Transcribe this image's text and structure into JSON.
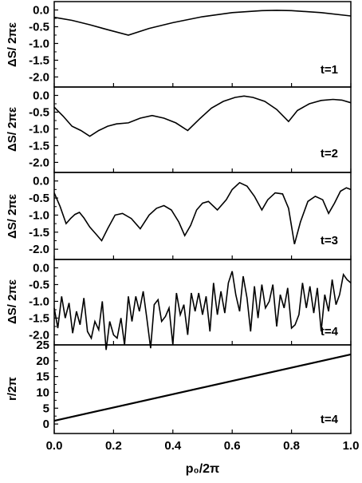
{
  "figure": {
    "xlabel": "p₀/2π",
    "x_ticks": [
      "0.0",
      "0.2",
      "0.4",
      "0.6",
      "0.8",
      "1.0"
    ]
  },
  "chart_data": [
    {
      "type": "line",
      "panel_label": "t=1",
      "ylabel": "ΔS/ 2πε",
      "xlim": [
        0,
        1
      ],
      "ylim": [
        -2.3,
        0.25
      ],
      "y_ticks": [
        "0.0",
        "-0.5",
        "-1.0",
        "-1.5",
        "-2.0"
      ],
      "x": [
        0,
        0.06,
        0.12,
        0.18,
        0.25,
        0.32,
        0.4,
        0.5,
        0.6,
        0.7,
        0.75,
        0.8,
        0.9,
        1.0
      ],
      "y": [
        -0.22,
        -0.31,
        -0.44,
        -0.59,
        -0.75,
        -0.55,
        -0.38,
        -0.2,
        -0.08,
        -0.02,
        -0.01,
        -0.02,
        -0.08,
        -0.18
      ]
    },
    {
      "type": "line",
      "panel_label": "t=2",
      "ylabel": "ΔS/ 2πε",
      "xlim": [
        0,
        1
      ],
      "ylim": [
        -2.3,
        0.25
      ],
      "y_ticks": [
        "0.0",
        "-0.5",
        "-1.0",
        "-1.5",
        "-2.0"
      ],
      "x": [
        0,
        0.03,
        0.06,
        0.09,
        0.12,
        0.15,
        0.18,
        0.21,
        0.25,
        0.29,
        0.33,
        0.37,
        0.41,
        0.45,
        0.49,
        0.53,
        0.57,
        0.61,
        0.64,
        0.67,
        0.71,
        0.75,
        0.79,
        0.82,
        0.86,
        0.9,
        0.94,
        0.97,
        1.0
      ],
      "y": [
        -0.35,
        -0.62,
        -0.92,
        -1.05,
        -1.22,
        -1.05,
        -0.92,
        -0.85,
        -0.82,
        -0.68,
        -0.6,
        -0.68,
        -0.82,
        -1.05,
        -0.7,
        -0.38,
        -0.18,
        -0.06,
        -0.02,
        -0.06,
        -0.18,
        -0.42,
        -0.78,
        -0.45,
        -0.25,
        -0.15,
        -0.12,
        -0.14,
        -0.22
      ]
    },
    {
      "type": "line",
      "panel_label": "t=3",
      "ylabel": "ΔS/ 2πε",
      "xlim": [
        0,
        1
      ],
      "ylim": [
        -2.3,
        0.25
      ],
      "y_ticks": [
        "0.0",
        "-0.5",
        "-1.0",
        "-1.5",
        "-2.0"
      ],
      "x": [
        0,
        0.02,
        0.04,
        0.055,
        0.07,
        0.085,
        0.1,
        0.12,
        0.14,
        0.16,
        0.18,
        0.205,
        0.23,
        0.26,
        0.29,
        0.32,
        0.345,
        0.37,
        0.395,
        0.42,
        0.44,
        0.46,
        0.48,
        0.5,
        0.52,
        0.55,
        0.58,
        0.6,
        0.625,
        0.65,
        0.675,
        0.7,
        0.72,
        0.745,
        0.77,
        0.79,
        0.81,
        0.83,
        0.855,
        0.88,
        0.905,
        0.925,
        0.945,
        0.965,
        0.985,
        1.0
      ],
      "y": [
        -0.35,
        -0.75,
        -1.25,
        -1.1,
        -0.98,
        -0.92,
        -1.08,
        -1.35,
        -1.55,
        -1.75,
        -1.4,
        -1.0,
        -0.95,
        -1.1,
        -1.4,
        -1.0,
        -0.8,
        -0.72,
        -0.85,
        -1.2,
        -1.6,
        -1.3,
        -0.85,
        -0.65,
        -0.6,
        -0.85,
        -0.55,
        -0.25,
        -0.05,
        -0.15,
        -0.45,
        -0.85,
        -0.55,
        -0.35,
        -0.38,
        -0.8,
        -1.85,
        -1.2,
        -0.6,
        -0.45,
        -0.55,
        -0.95,
        -0.65,
        -0.3,
        -0.2,
        -0.25
      ]
    },
    {
      "type": "line",
      "panel_label": "t=4",
      "ylabel": "ΔS/ 2πε",
      "xlim": [
        0,
        1
      ],
      "ylim": [
        -2.3,
        0.25
      ],
      "y_ticks": [
        "0.0",
        "-0.5",
        "-1.0",
        "-1.5",
        "-2.0"
      ],
      "x": [
        0,
        0.012,
        0.025,
        0.037,
        0.05,
        0.062,
        0.075,
        0.087,
        0.1,
        0.112,
        0.125,
        0.137,
        0.15,
        0.162,
        0.175,
        0.187,
        0.2,
        0.212,
        0.225,
        0.237,
        0.25,
        0.262,
        0.275,
        0.287,
        0.3,
        0.312,
        0.325,
        0.337,
        0.35,
        0.362,
        0.375,
        0.387,
        0.4,
        0.412,
        0.425,
        0.437,
        0.45,
        0.462,
        0.475,
        0.487,
        0.5,
        0.512,
        0.525,
        0.537,
        0.55,
        0.562,
        0.575,
        0.587,
        0.6,
        0.612,
        0.625,
        0.637,
        0.65,
        0.662,
        0.675,
        0.687,
        0.7,
        0.712,
        0.725,
        0.737,
        0.75,
        0.762,
        0.775,
        0.787,
        0.8,
        0.812,
        0.825,
        0.837,
        0.85,
        0.862,
        0.875,
        0.887,
        0.9,
        0.912,
        0.925,
        0.937,
        0.95,
        0.962,
        0.975,
        0.987,
        1.0
      ],
      "y": [
        -1.2,
        -1.8,
        -0.85,
        -1.5,
        -1.05,
        -1.95,
        -1.3,
        -1.7,
        -0.9,
        -1.9,
        -2.1,
        -1.6,
        -1.85,
        -1.0,
        -2.45,
        -1.6,
        -2.0,
        -2.1,
        -1.5,
        -2.3,
        -0.85,
        -1.6,
        -0.85,
        -1.3,
        -0.7,
        -1.5,
        -2.4,
        -1.1,
        -0.95,
        -1.6,
        -1.45,
        -1.2,
        -2.3,
        -0.75,
        -1.4,
        -1.1,
        -2.0,
        -0.75,
        -1.3,
        -0.75,
        -1.4,
        -0.85,
        -1.9,
        -0.45,
        -1.4,
        -0.7,
        -1.35,
        -0.45,
        -0.1,
        -0.8,
        -1.3,
        -0.25,
        -0.9,
        -1.9,
        -0.55,
        -1.5,
        -0.5,
        -1.2,
        -1.0,
        -0.5,
        -1.75,
        -0.8,
        -1.2,
        -0.6,
        -1.8,
        -1.7,
        -1.4,
        -0.45,
        -1.2,
        -0.55,
        -1.35,
        -0.6,
        -1.9,
        -0.8,
        -1.3,
        -0.35,
        -1.1,
        -0.8,
        -0.2,
        -0.35,
        -0.45
      ]
    },
    {
      "type": "line",
      "panel_label": "t=4",
      "ylabel": "r/2π",
      "xlim": [
        0,
        1
      ],
      "ylim": [
        -3,
        25
      ],
      "y_ticks": [
        "25",
        "20",
        "15",
        "10",
        "5",
        "0"
      ],
      "x": [
        0,
        1
      ],
      "y": [
        1,
        22
      ]
    }
  ]
}
